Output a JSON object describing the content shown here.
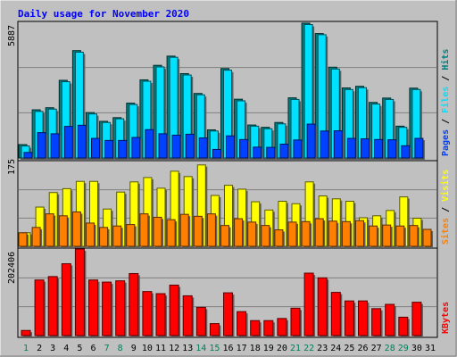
{
  "chart_data": [
    {
      "type": "bar",
      "panel": "pages-files-hits",
      "title": "Daily usage for November 2020",
      "ylabel_max": "5887",
      "ylim": [
        0,
        5887
      ],
      "legend": [
        "Pages",
        "Files",
        "Hits"
      ],
      "legend_sep": " / ",
      "categories": [
        "1",
        "2",
        "3",
        "4",
        "5",
        "6",
        "7",
        "8",
        "9",
        "10",
        "11",
        "12",
        "13",
        "14",
        "15",
        "16",
        "17",
        "18",
        "19",
        "20",
        "21",
        "22",
        "23",
        "24",
        "25",
        "26",
        "27",
        "28",
        "29",
        "30",
        "31"
      ],
      "series": [
        {
          "name": "Hits",
          "color": "#008080",
          "values": [
            580,
            2090,
            2180,
            3370,
            4660,
            1970,
            1590,
            1750,
            2380,
            3390,
            4020,
            4420,
            3660,
            2800,
            1220,
            3880,
            2550,
            1430,
            1330,
            1540,
            2610,
            5850,
            5400,
            3940,
            3040,
            3110,
            2410,
            2600,
            1380,
            3030,
            0
          ]
        },
        {
          "name": "Files",
          "color": "#00e0ff",
          "values": [
            520,
            2020,
            2120,
            3310,
            4590,
            1910,
            1540,
            1700,
            2320,
            3330,
            3950,
            4370,
            3600,
            2740,
            1170,
            3810,
            2480,
            1380,
            1270,
            1480,
            2540,
            5790,
            5350,
            3860,
            2970,
            3050,
            2340,
            2540,
            1330,
            2970,
            0
          ]
        },
        {
          "name": "Pages",
          "color": "#0040ff",
          "values": [
            240,
            1100,
            1050,
            1370,
            1420,
            850,
            760,
            760,
            890,
            1230,
            1050,
            990,
            1030,
            870,
            370,
            960,
            800,
            470,
            460,
            600,
            780,
            1470,
            1170,
            1180,
            850,
            830,
            800,
            790,
            530,
            850,
            0
          ]
        }
      ]
    },
    {
      "type": "bar",
      "panel": "visits-sites",
      "ylabel_max": "175",
      "ylim": [
        0,
        175
      ],
      "legend": [
        "Sites",
        "Visits"
      ],
      "legend_sep": " / ",
      "series": [
        {
          "name": "Visits",
          "color": "#ffff00",
          "values": [
            28,
            81,
            111,
            119,
            134,
            134,
            77,
            112,
            133,
            142,
            120,
            155,
            144,
            168,
            105,
            126,
            118,
            92,
            75,
            93,
            88,
            133,
            104,
            98,
            93,
            59,
            63,
            74,
            102,
            58,
            0
          ]
        },
        {
          "name": "Sites",
          "color": "#ff8000",
          "values": [
            28,
            39,
            67,
            63,
            71,
            48,
            39,
            42,
            45,
            67,
            60,
            55,
            66,
            62,
            67,
            43,
            57,
            50,
            43,
            34,
            50,
            51,
            57,
            52,
            51,
            53,
            42,
            44,
            42,
            43,
            35
          ]
        }
      ]
    },
    {
      "type": "bar",
      "panel": "kbytes",
      "ylabel_max": "202406",
      "ylim": [
        0,
        202406
      ],
      "legend": [
        "KBytes"
      ],
      "series": [
        {
          "name": "KBytes",
          "color": "#ff0000",
          "values": [
            12000,
            130000,
            138000,
            168000,
            202406,
            130000,
            125000,
            128000,
            145000,
            103000,
            98000,
            118000,
            93000,
            66000,
            28000,
            100000,
            56000,
            35000,
            35000,
            40000,
            64000,
            146000,
            135000,
            101000,
            81000,
            81000,
            63000,
            73000,
            43000,
            78000,
            0
          ]
        }
      ],
      "xticks": [
        "1",
        "2",
        "3",
        "4",
        "5",
        "6",
        "7",
        "8",
        "9",
        "10",
        "11",
        "12",
        "13",
        "14",
        "15",
        "16",
        "17",
        "18",
        "19",
        "20",
        "21",
        "22",
        "23",
        "24",
        "25",
        "26",
        "27",
        "28",
        "29",
        "30",
        "31"
      ],
      "weekend_days": [
        1,
        7,
        8,
        14,
        15,
        21,
        22,
        28,
        29
      ],
      "tick_color_weekday": "#000000",
      "tick_color_weekend": "#00805c"
    }
  ]
}
